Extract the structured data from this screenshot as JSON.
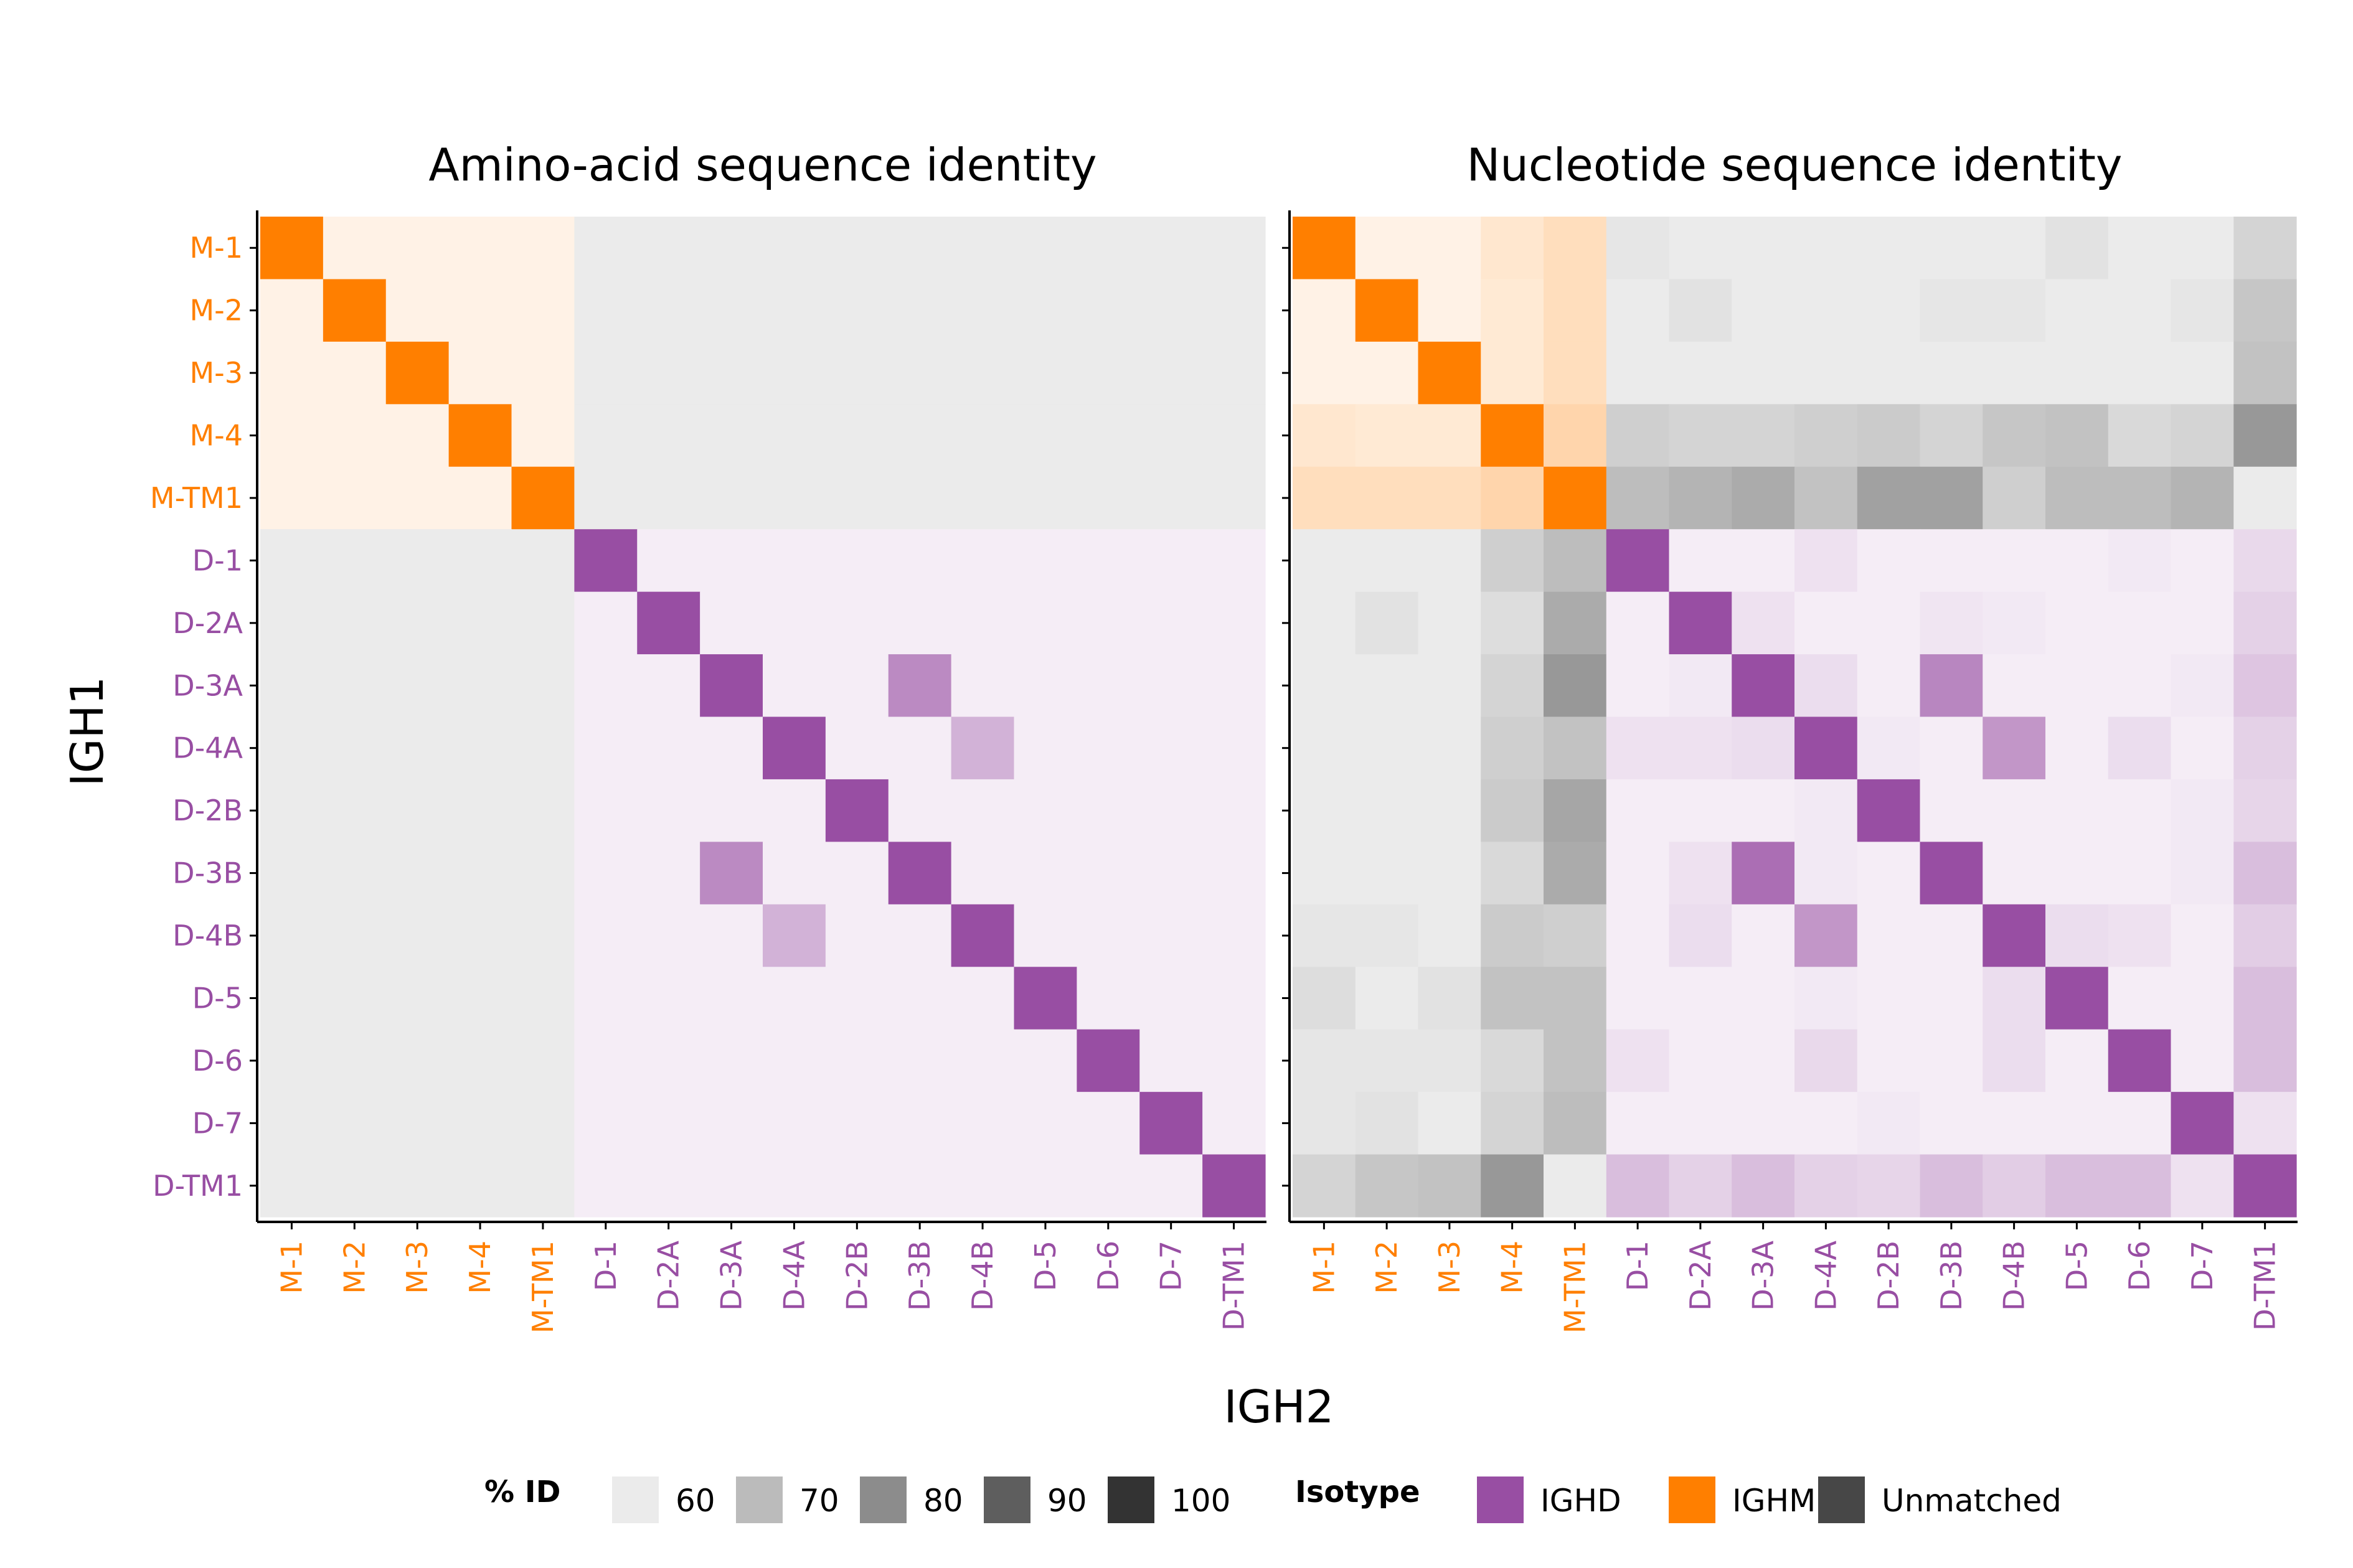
{
  "chart_data": [
    {
      "type": "heatmap",
      "title": "Amino-acid sequence identity",
      "xlabel": "IGH2",
      "ylabel": "IGH1",
      "rows": [
        "M-1",
        "M-2",
        "M-3",
        "M-4",
        "M-TM1",
        "D-1",
        "D-2A",
        "D-3A",
        "D-4A",
        "D-2B",
        "D-3B",
        "D-4B",
        "D-5",
        "D-6",
        "D-7",
        "D-TM1"
      ],
      "cols": [
        "M-1",
        "M-2",
        "M-3",
        "M-4",
        "M-TM1",
        "D-1",
        "D-2A",
        "D-3A",
        "D-4A",
        "D-2B",
        "D-3B",
        "D-4B",
        "D-5",
        "D-6",
        "D-7",
        "D-TM1"
      ],
      "values": [
        [
          100,
          60,
          60,
          60,
          60,
          60,
          60,
          60,
          60,
          60,
          60,
          60,
          60,
          60,
          60,
          60
        ],
        [
          60,
          100,
          60,
          60,
          60,
          60,
          60,
          60,
          60,
          60,
          60,
          60,
          60,
          60,
          60,
          60
        ],
        [
          60,
          60,
          100,
          60,
          60,
          60,
          60,
          60,
          60,
          60,
          60,
          60,
          60,
          60,
          60,
          60
        ],
        [
          60,
          60,
          60,
          100,
          60,
          60,
          60,
          60,
          60,
          60,
          60,
          60,
          60,
          60,
          60,
          60
        ],
        [
          60,
          60,
          60,
          60,
          100,
          60,
          60,
          60,
          60,
          60,
          60,
          60,
          60,
          60,
          60,
          60
        ],
        [
          60,
          60,
          60,
          60,
          60,
          100,
          60,
          60,
          60,
          60,
          60,
          60,
          60,
          60,
          60,
          60
        ],
        [
          60,
          60,
          60,
          60,
          60,
          60,
          100,
          60,
          60,
          60,
          60,
          60,
          60,
          60,
          60,
          60
        ],
        [
          60,
          60,
          60,
          60,
          60,
          60,
          60,
          100,
          60,
          60,
          85,
          60,
          60,
          60,
          60,
          60
        ],
        [
          60,
          60,
          60,
          60,
          60,
          60,
          60,
          60,
          100,
          60,
          60,
          75,
          60,
          60,
          60,
          60
        ],
        [
          60,
          60,
          60,
          60,
          60,
          60,
          60,
          60,
          60,
          100,
          60,
          60,
          60,
          60,
          60,
          60
        ],
        [
          60,
          60,
          60,
          60,
          60,
          60,
          60,
          85,
          60,
          60,
          100,
          60,
          60,
          60,
          60,
          60
        ],
        [
          60,
          60,
          60,
          60,
          60,
          60,
          60,
          60,
          75,
          60,
          60,
          100,
          60,
          60,
          60,
          60
        ],
        [
          60,
          60,
          60,
          60,
          60,
          60,
          60,
          60,
          60,
          60,
          60,
          60,
          100,
          60,
          60,
          60
        ],
        [
          60,
          60,
          60,
          60,
          60,
          60,
          60,
          60,
          60,
          60,
          60,
          60,
          60,
          100,
          60,
          60
        ],
        [
          60,
          60,
          60,
          60,
          60,
          60,
          60,
          60,
          60,
          60,
          60,
          60,
          60,
          60,
          100,
          60
        ],
        [
          60,
          60,
          60,
          60,
          60,
          60,
          60,
          60,
          60,
          60,
          60,
          60,
          60,
          60,
          60,
          100
        ]
      ]
    },
    {
      "type": "heatmap",
      "title": "Nucleotide sequence identity",
      "xlabel": "IGH2",
      "ylabel": "IGH1",
      "rows": [
        "M-1",
        "M-2",
        "M-3",
        "M-4",
        "M-TM1",
        "D-1",
        "D-2A",
        "D-3A",
        "D-4A",
        "D-2B",
        "D-3B",
        "D-4B",
        "D-5",
        "D-6",
        "D-7",
        "D-TM1"
      ],
      "cols": [
        "M-1",
        "M-2",
        "M-3",
        "M-4",
        "M-TM1",
        "D-1",
        "D-2A",
        "D-3A",
        "D-4A",
        "D-2B",
        "D-3B",
        "D-4B",
        "D-5",
        "D-6",
        "D-7",
        "D-TM1"
      ],
      "values": [
        [
          100,
          60,
          60,
          64,
          67,
          61,
          60,
          60,
          60,
          60,
          60,
          60,
          62,
          60,
          60,
          65
        ],
        [
          60,
          100,
          60,
          63,
          67,
          60,
          62,
          60,
          60,
          60,
          61,
          61,
          60,
          60,
          61,
          68
        ],
        [
          60,
          60,
          100,
          63,
          67,
          60,
          60,
          60,
          60,
          60,
          60,
          60,
          60,
          60,
          60,
          69
        ],
        [
          64,
          63,
          63,
          100,
          70,
          66,
          65,
          65,
          66,
          67,
          65,
          68,
          69,
          64,
          65,
          78
        ],
        [
          67,
          67,
          67,
          70,
          100,
          70,
          72,
          74,
          69,
          76,
          76,
          66,
          70,
          70,
          72,
          60
        ],
        [
          60,
          60,
          60,
          66,
          70,
          100,
          60,
          60,
          63,
          60,
          60,
          60,
          60,
          61,
          60,
          65
        ],
        [
          60,
          62,
          60,
          63,
          74,
          60,
          100,
          63,
          60,
          60,
          62,
          61,
          60,
          60,
          60,
          67
        ],
        [
          60,
          60,
          60,
          65,
          78,
          60,
          61,
          100,
          64,
          60,
          86,
          60,
          60,
          60,
          61,
          70
        ],
        [
          60,
          60,
          60,
          66,
          69,
          63,
          63,
          64,
          100,
          61,
          60,
          82,
          60,
          64,
          60,
          67
        ],
        [
          60,
          60,
          60,
          67,
          75,
          60,
          60,
          60,
          61,
          100,
          60,
          60,
          60,
          60,
          61,
          66
        ],
        [
          60,
          60,
          60,
          64,
          74,
          60,
          63,
          92,
          61,
          60,
          100,
          60,
          60,
          60,
          61,
          72
        ],
        [
          61,
          61,
          60,
          67,
          66,
          60,
          64,
          60,
          82,
          60,
          60,
          100,
          64,
          63,
          60,
          68
        ],
        [
          63,
          60,
          62,
          69,
          69,
          60,
          60,
          60,
          61,
          60,
          60,
          64,
          100,
          60,
          60,
          72
        ],
        [
          61,
          61,
          61,
          64,
          69,
          63,
          60,
          60,
          65,
          60,
          60,
          64,
          60,
          100,
          60,
          72
        ],
        [
          61,
          62,
          60,
          65,
          70,
          60,
          60,
          60,
          60,
          61,
          60,
          60,
          60,
          60,
          100,
          63
        ],
        [
          65,
          68,
          69,
          78,
          60,
          72,
          67,
          72,
          67,
          66,
          72,
          68,
          72,
          72,
          63,
          100
        ]
      ]
    }
  ],
  "legend": {
    "pid_title": "% ID",
    "pid_breaks": [
      "60",
      "70",
      "80",
      "90",
      "100"
    ],
    "isotype_title": "Isotype",
    "isotypes": [
      "IGHD",
      "IGHM",
      "Unmatched"
    ]
  },
  "colors": {
    "IGHM": "#ff7f00",
    "IGHD": "#984ea3",
    "Unmatched": "#474747",
    "pid_scale": [
      "#ebebeb",
      "#bbbbbb",
      "#8c8c8c",
      "#5e5e5e",
      "#333333"
    ],
    "axis": "#000000",
    "tick_label_m": "#ff7f00",
    "tick_label_d": "#984ea3"
  }
}
